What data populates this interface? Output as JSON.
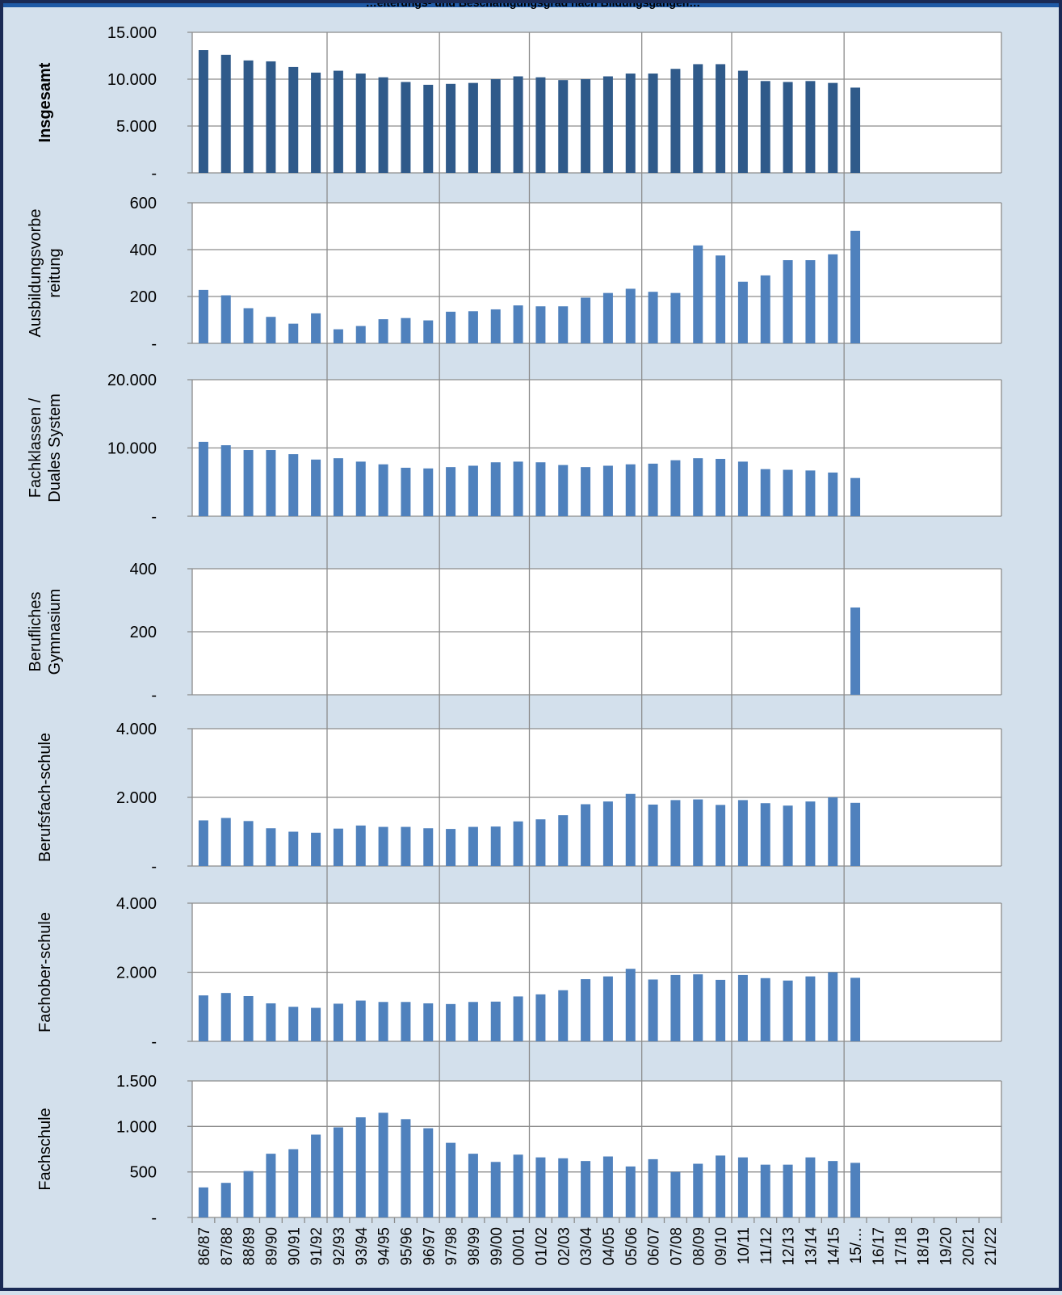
{
  "header": {
    "title": "…eiterungs- und Beschäftigungsgrad nach Bildungsgängen…"
  },
  "colors": {
    "background": "#d3e0ec",
    "header": "#1f5aa6",
    "border": "#1a2a55",
    "bar_dark": "#2f5a8a",
    "bar_light": "#4f81bd",
    "plot_bg": "#ffffff",
    "grid": "#8c8c8c"
  },
  "chart_data": {
    "type": "bar",
    "categories": [
      "86/87",
      "87/88",
      "88/89",
      "89/90",
      "90/91",
      "91/92",
      "92/93",
      "93/94",
      "94/95",
      "95/96",
      "96/97",
      "97/98",
      "98/99",
      "99/00",
      "00/01",
      "01/02",
      "02/03",
      "03/04",
      "04/05",
      "05/06",
      "06/07",
      "07/08",
      "08/09",
      "09/10",
      "10/11",
      "11/12",
      "12/13",
      "13/14",
      "14/15",
      "15/…",
      "16/17",
      "17/18",
      "18/19",
      "19/20",
      "20/21",
      "21/22"
    ],
    "panels": [
      {
        "ylabel": [
          "Insgesamt"
        ],
        "ylabel_bold": true,
        "ylim": [
          0,
          15000
        ],
        "ticks": [
          {
            "v": 0,
            "label": "-"
          },
          {
            "v": 5000,
            "label": "5.000"
          },
          {
            "v": 10000,
            "label": "10.000"
          },
          {
            "v": 15000,
            "label": "15.000"
          }
        ],
        "color": "#2f5a8a",
        "values": [
          13100,
          12600,
          12000,
          11900,
          11300,
          10700,
          10900,
          10600,
          10200,
          9700,
          9400,
          9500,
          9600,
          10000,
          10300,
          10200,
          9900,
          10000,
          10300,
          10600,
          10600,
          11100,
          11600,
          11600,
          10900,
          9800,
          9700,
          9800,
          9600,
          9100,
          null,
          null,
          null,
          null,
          null,
          null
        ]
      },
      {
        "ylabel": [
          "Ausbildungsvorbe",
          "reitung"
        ],
        "ylabel_bold": false,
        "ylim": [
          0,
          600
        ],
        "ticks": [
          {
            "v": 0,
            "label": "-"
          },
          {
            "v": 200,
            "label": "200"
          },
          {
            "v": 400,
            "label": "400"
          },
          {
            "v": 600,
            "label": "600"
          }
        ],
        "color": "#4f81bd",
        "values": [
          228,
          205,
          150,
          113,
          84,
          128,
          60,
          74,
          103,
          108,
          98,
          135,
          137,
          145,
          162,
          158,
          158,
          195,
          215,
          233,
          220,
          215,
          418,
          375,
          263,
          290,
          355,
          355,
          380,
          480,
          null,
          null,
          null,
          null,
          null,
          null
        ]
      },
      {
        "ylabel": [
          "Fachklassen /",
          "Duales System"
        ],
        "ylabel_bold": false,
        "ylim": [
          0,
          20000
        ],
        "ticks": [
          {
            "v": 0,
            "label": "-"
          },
          {
            "v": 10000,
            "label": "10.000"
          },
          {
            "v": 20000,
            "label": "20.000"
          }
        ],
        "color": "#4f81bd",
        "values": [
          10900,
          10400,
          9700,
          9700,
          9100,
          8300,
          8500,
          8000,
          7600,
          7100,
          7000,
          7200,
          7400,
          7900,
          8000,
          7900,
          7500,
          7200,
          7400,
          7600,
          7700,
          8200,
          8500,
          8400,
          8000,
          6900,
          6800,
          6700,
          6400,
          5600,
          null,
          null,
          null,
          null,
          null,
          null
        ]
      },
      {
        "ylabel": [
          "Berufliches",
          "Gymnasium"
        ],
        "ylabel_bold": false,
        "ylim": [
          0,
          400
        ],
        "ticks": [
          {
            "v": 0,
            "label": "-"
          },
          {
            "v": 200,
            "label": "200"
          },
          {
            "v": 400,
            "label": "400"
          }
        ],
        "color": "#4f81bd",
        "values": [
          null,
          null,
          null,
          null,
          null,
          null,
          null,
          null,
          null,
          null,
          null,
          null,
          null,
          null,
          null,
          null,
          null,
          null,
          null,
          null,
          null,
          null,
          null,
          null,
          null,
          null,
          null,
          null,
          null,
          277,
          null,
          null,
          null,
          null,
          null,
          null
        ]
      },
      {
        "ylabel": [
          "Berufsfach-schule"
        ],
        "ylabel_bold": false,
        "ylim": [
          0,
          4000
        ],
        "ticks": [
          {
            "v": 0,
            "label": "-"
          },
          {
            "v": 2000,
            "label": "2.000"
          },
          {
            "v": 4000,
            "label": "4.000"
          }
        ],
        "color": "#4f81bd",
        "values": [
          1330,
          1400,
          1310,
          1100,
          1000,
          970,
          1090,
          1180,
          1140,
          1140,
          1100,
          1080,
          1140,
          1150,
          1300,
          1360,
          1480,
          1800,
          1880,
          2100,
          1790,
          1920,
          1940,
          1780,
          1920,
          1830,
          1760,
          1880,
          2000,
          1840,
          null,
          null,
          null,
          null,
          null,
          null
        ]
      },
      {
        "ylabel": [
          "Fachober-schule"
        ],
        "ylabel_bold": false,
        "ylim": [
          0,
          4000
        ],
        "ticks": [
          {
            "v": 0,
            "label": "-"
          },
          {
            "v": 2000,
            "label": "2.000"
          },
          {
            "v": 4000,
            "label": "4.000"
          }
        ],
        "color": "#4f81bd",
        "values": [
          1330,
          1400,
          1310,
          1100,
          1000,
          970,
          1090,
          1180,
          1140,
          1140,
          1100,
          1080,
          1140,
          1150,
          1300,
          1360,
          1480,
          1800,
          1880,
          2100,
          1790,
          1920,
          1940,
          1780,
          1920,
          1830,
          1760,
          1880,
          2000,
          1840,
          null,
          null,
          null,
          null,
          null,
          null
        ]
      },
      {
        "ylabel": [
          "Fachschule"
        ],
        "ylabel_bold": false,
        "ylim": [
          0,
          1500
        ],
        "ticks": [
          {
            "v": 0,
            "label": "-"
          },
          {
            "v": 500,
            "label": "500"
          },
          {
            "v": 1000,
            "label": "1.000"
          },
          {
            "v": 1500,
            "label": "1.500"
          }
        ],
        "color": "#4f81bd",
        "values": [
          330,
          380,
          510,
          700,
          750,
          910,
          990,
          1100,
          1150,
          1080,
          980,
          820,
          700,
          610,
          690,
          660,
          650,
          620,
          670,
          560,
          640,
          500,
          590,
          680,
          660,
          580,
          580,
          660,
          620,
          600,
          null,
          null,
          null,
          null,
          null,
          null
        ]
      }
    ]
  }
}
